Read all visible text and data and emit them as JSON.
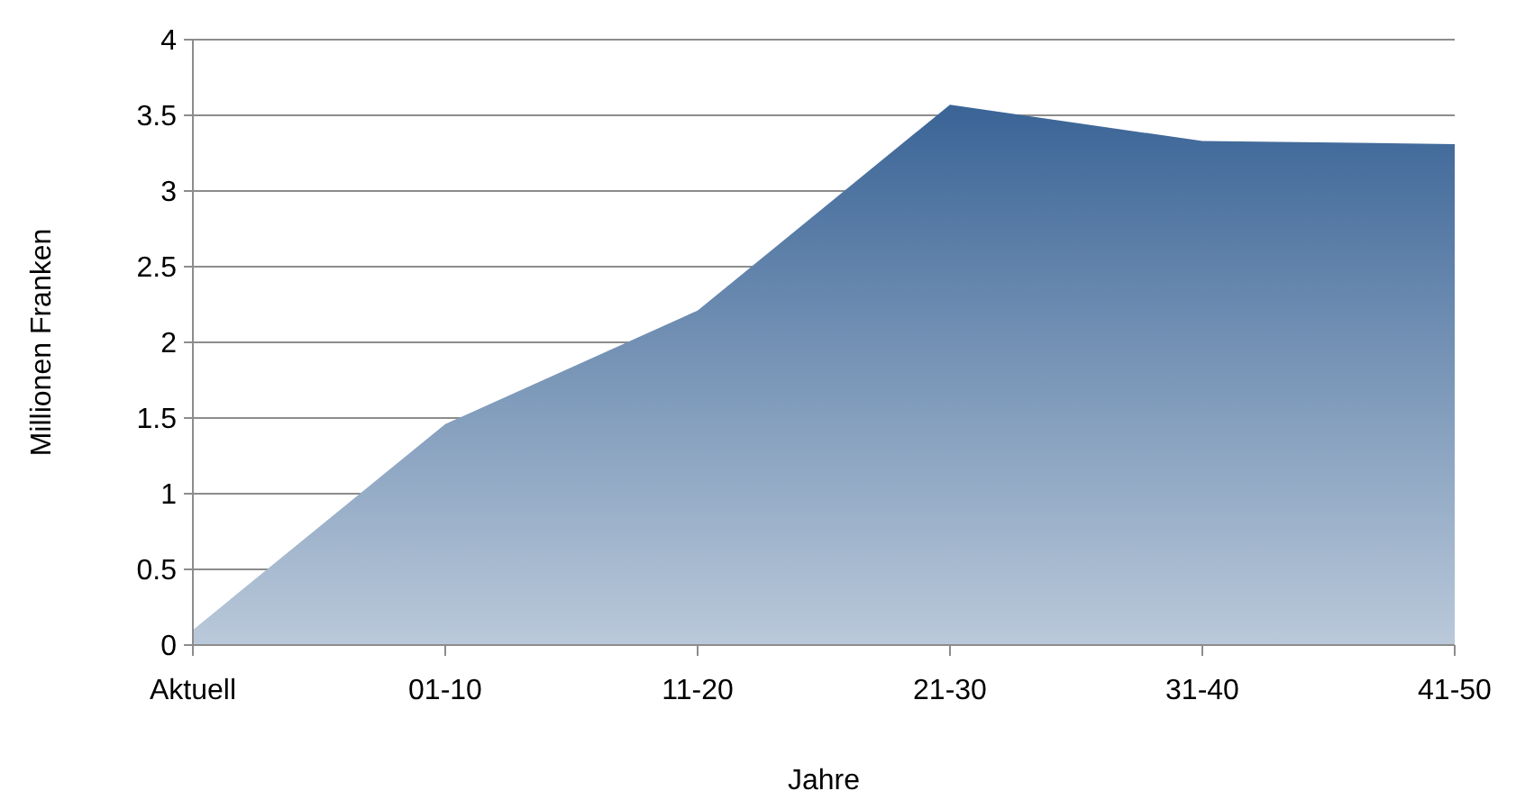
{
  "chart_data": {
    "type": "area",
    "xlabel": "Jahre",
    "ylabel": "Millionen Franken",
    "categories": [
      "Aktuell",
      "01-10",
      "11-20",
      "21-30",
      "31-40",
      "41-50"
    ],
    "series": [
      {
        "color": "#3a6496",
        "values": [
          0.1,
          1.46,
          2.21,
          3.57,
          3.33,
          3.31
        ]
      }
    ],
    "ylim": [
      0,
      4
    ],
    "yticks": [
      0,
      0.5,
      1,
      1.5,
      2,
      2.5,
      3,
      3.5,
      4
    ],
    "grid": "y"
  }
}
